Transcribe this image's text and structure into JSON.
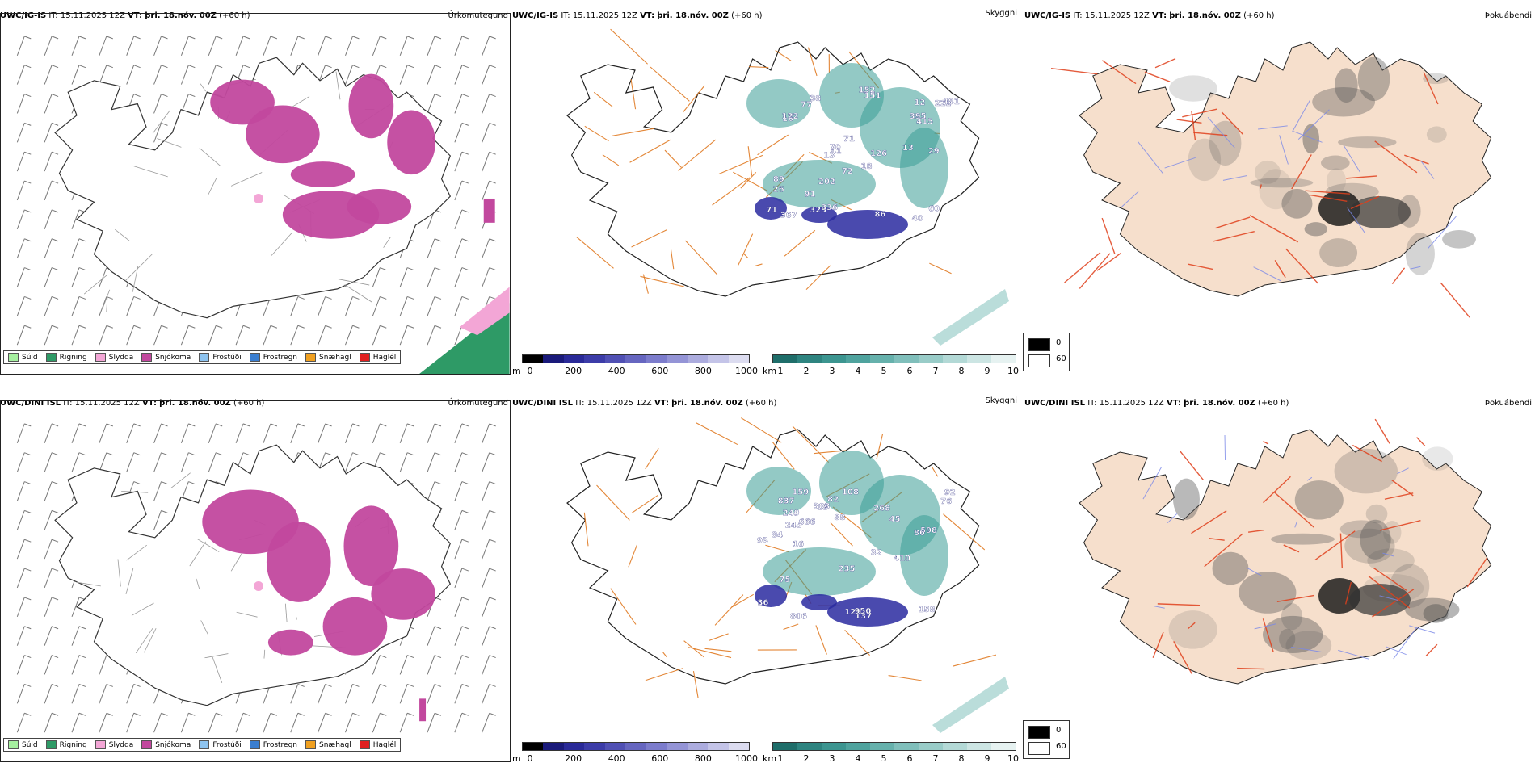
{
  "colors": {
    "snow": "#c2489e",
    "sleet": "#f3a6d6",
    "rain": "#2e9a66",
    "cloud_teal": "#3a9d96",
    "low_cloud_blue": "#2a2aa0",
    "roads": "#e07a22",
    "land_fill": "#f6dfcc",
    "fog_red_roads": "#e0401c",
    "rivers": "#7a88e8"
  },
  "rows": [
    {
      "model": "UWC/IG-IS",
      "precip": {
        "model": "UWC/IG-IS",
        "it_label": "IT:",
        "it_value": "15.11.2025 12Z",
        "vt_label": "VT:",
        "vt_value": "þri. 18.nóv. 00Z",
        "lead": "(+60 h)",
        "type_label": "Úrkomutegund"
      },
      "cloud": {
        "model": "UWC/IG-IS",
        "it_label": "IT:",
        "it_value": "15.11.2025 12Z",
        "vt_label": "VT:",
        "vt_value": "þri. 18.nóv. 00Z",
        "lead": "(+60 h)",
        "type_label": "Skyggni",
        "labels": [
          "77",
          "29",
          "41",
          "40",
          "26",
          "16",
          "126",
          "325",
          "202",
          "222",
          "395",
          "38",
          "122",
          "481",
          "336",
          "151",
          "367",
          "415",
          "152",
          "86",
          "89",
          "70",
          "13",
          "71",
          "72",
          "60",
          "91",
          "71",
          "13",
          "12",
          "18"
        ]
      },
      "fog": {
        "model": "UWC/IG-IS",
        "it_label": "IT:",
        "it_value": "15.11.2025 12Z",
        "vt_label": "VT:",
        "vt_value": "þri. 18.nóv. 00Z",
        "lead": "(+60 h)",
        "type_label": "Þokuábendi"
      }
    },
    {
      "model": "UWC/DINI ISL",
      "precip": {
        "model": "UWC/DINI ISL",
        "it_label": "IT:",
        "it_value": "15.11.2025 12Z",
        "vt_label": "VT:",
        "vt_value": "þri. 18.nóv. 00Z",
        "lead": "(+60 h)",
        "type_label": "Úrkomutegund"
      },
      "cloud": {
        "model": "UWC/DINI ISL",
        "it_label": "IT:",
        "it_value": "15.11.2025 12Z",
        "vt_label": "VT:",
        "vt_value": "þri. 18.nóv. 00Z",
        "lead": "(+60 h)",
        "type_label": "Skyggni",
        "labels": [
          "137",
          "129",
          "36",
          "950",
          "410",
          "666",
          "268",
          "806",
          "235",
          "97",
          "16",
          "76",
          "108",
          "84",
          "249",
          "598",
          "159",
          "18",
          "45",
          "158",
          "86",
          "303",
          "82",
          "92",
          "93",
          "83",
          "75",
          "245",
          "88",
          "32"
        ]
      },
      "fog": {
        "model": "UWC/DINI ISL",
        "it_label": "IT:",
        "it_value": "15.11.2025 12Z",
        "vt_label": "VT:",
        "vt_value": "þri. 18.nóv. 00Z",
        "lead": "(+60 h)",
        "type_label": "Þokuábendi"
      }
    }
  ],
  "precip_legend": [
    {
      "label": "Súld",
      "color": "#a6f0a0"
    },
    {
      "label": "Rigning",
      "color": "#2e9a66"
    },
    {
      "label": "Slydda",
      "color": "#f3a6d6"
    },
    {
      "label": "Snjókoma",
      "color": "#c2489e"
    },
    {
      "label": "Frostúði",
      "color": "#8ec4f0"
    },
    {
      "label": "Frostregn",
      "color": "#3a7ed0"
    },
    {
      "label": "Snæhagl",
      "color": "#f0a020"
    },
    {
      "label": "Haglél",
      "color": "#e02020"
    }
  ],
  "altitude_bar": {
    "unit": "m",
    "ticks": [
      "0",
      "200",
      "400",
      "600",
      "800",
      "1000"
    ],
    "colors": [
      "#000000",
      "#1a1a7a",
      "#2a2a98",
      "#3c3ca8",
      "#5050b4",
      "#6666c0",
      "#7c7ccc",
      "#9494d6",
      "#acacde",
      "#c4c4e8",
      "#dcdcf0"
    ]
  },
  "visibility_bar": {
    "unit": "km",
    "ticks": [
      "1",
      "2",
      "3",
      "4",
      "5",
      "6",
      "7",
      "8",
      "9",
      "10"
    ],
    "colors": [
      "#1f6e6a",
      "#2e8480",
      "#3c9590",
      "#4fa39e",
      "#66b1ac",
      "#80bfbb",
      "#99ccc8",
      "#b3d9d6",
      "#cce5e3",
      "#e6f2f1"
    ]
  },
  "fog_legend": [
    {
      "label": "0",
      "color": "#000000"
    },
    {
      "label": "60",
      "color": "#ffffff"
    }
  ]
}
